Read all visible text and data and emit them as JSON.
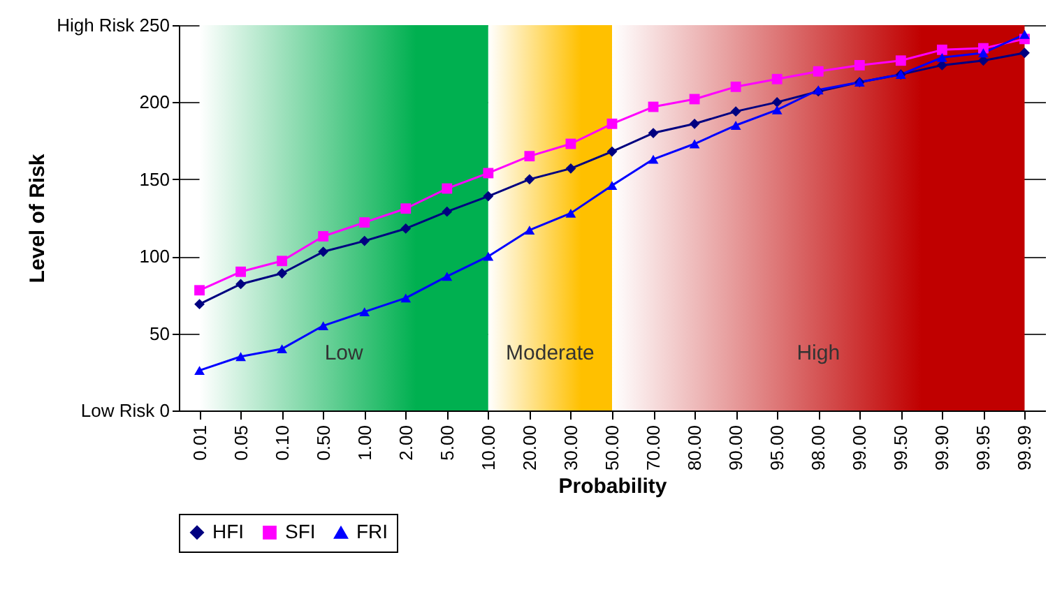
{
  "chart_data": {
    "type": "line",
    "xlabel": "Probability",
    "ylabel": "Level of Risk",
    "categories": [
      "0.01",
      "0.05",
      "0.10",
      "0.50",
      "1.00",
      "2.00",
      "5.00",
      "10.00",
      "20.00",
      "30.00",
      "50.00",
      "70.00",
      "80.00",
      "90.00",
      "95.00",
      "98.00",
      "99.00",
      "99.50",
      "99.90",
      "99.95",
      "99.99"
    ],
    "series": [
      {
        "name": "HFI",
        "color": "#000080",
        "marker": "diamond",
        "values": [
          69,
          82,
          89,
          103,
          110,
          118,
          129,
          139,
          150,
          157,
          168,
          180,
          186,
          194,
          200,
          207,
          213,
          218,
          224,
          227,
          232
        ]
      },
      {
        "name": "SFI",
        "color": "#ff00ff",
        "marker": "square",
        "values": [
          78,
          90,
          97,
          113,
          122,
          131,
          144,
          154,
          165,
          173,
          186,
          197,
          202,
          210,
          215,
          220,
          224,
          227,
          234,
          235,
          241
        ]
      },
      {
        "name": "FRI",
        "color": "#0000ff",
        "marker": "triangle",
        "values": [
          26,
          35,
          40,
          55,
          64,
          73,
          87,
          100,
          117,
          128,
          146,
          163,
          173,
          185,
          195,
          208,
          213,
          218,
          229,
          232,
          244
        ]
      }
    ],
    "ylim": [
      0,
      250
    ],
    "yticks": [
      {
        "value": 0,
        "label": "Low Risk   0"
      },
      50,
      100,
      150,
      200,
      {
        "value": 250,
        "label": "High Risk 250"
      }
    ],
    "bands": [
      {
        "axis": "x",
        "from": "0.01",
        "to": "10.00",
        "label": "Low",
        "color": "#00b050"
      },
      {
        "axis": "x",
        "from": "10.00",
        "to": "50.00",
        "label": "Moderate",
        "color": "#ffc000"
      },
      {
        "axis": "x",
        "from": "50.00",
        "to": "99.99",
        "label": "High",
        "color": "#c00000"
      }
    ],
    "grid": "y",
    "legend": "bottom"
  }
}
